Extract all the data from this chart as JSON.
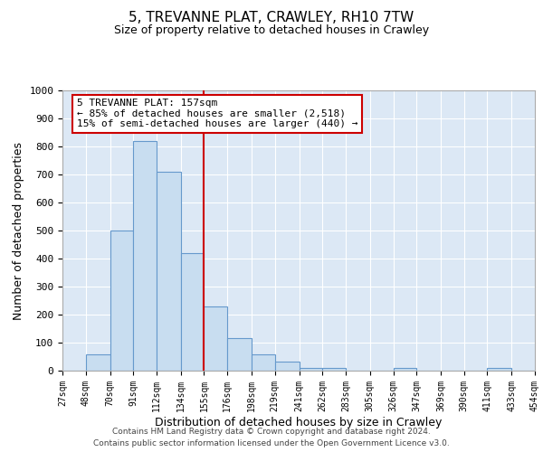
{
  "title": "5, TREVANNE PLAT, CRAWLEY, RH10 7TW",
  "subtitle": "Size of property relative to detached houses in Crawley",
  "xlabel": "Distribution of detached houses by size in Crawley",
  "ylabel": "Number of detached properties",
  "bar_color": "#c8ddf0",
  "bar_edge_color": "#6699cc",
  "background_color": "#dce8f5",
  "axes_background": "#dce8f5",
  "grid_color": "#ffffff",
  "vline_x": 155,
  "vline_color": "#cc0000",
  "bin_edges": [
    27,
    48,
    70,
    91,
    112,
    134,
    155,
    176,
    198,
    219,
    241,
    262,
    283,
    305,
    326,
    347,
    369,
    390,
    411,
    433,
    454
  ],
  "bin_heights": [
    0,
    57,
    500,
    820,
    710,
    420,
    230,
    115,
    57,
    33,
    10,
    10,
    0,
    0,
    10,
    0,
    0,
    0,
    10,
    0
  ],
  "annotation_title": "5 TREVANNE PLAT: 157sqm",
  "annotation_line1": "← 85% of detached houses are smaller (2,518)",
  "annotation_line2": "15% of semi-detached houses are larger (440) →",
  "annotation_box_color": "#ffffff",
  "annotation_box_edge_color": "#cc0000",
  "ylim": [
    0,
    1000
  ],
  "yticks": [
    0,
    100,
    200,
    300,
    400,
    500,
    600,
    700,
    800,
    900,
    1000
  ],
  "tick_labels": [
    "27sqm",
    "48sqm",
    "70sqm",
    "91sqm",
    "112sqm",
    "134sqm",
    "155sqm",
    "176sqm",
    "198sqm",
    "219sqm",
    "241sqm",
    "262sqm",
    "283sqm",
    "305sqm",
    "326sqm",
    "347sqm",
    "369sqm",
    "390sqm",
    "411sqm",
    "433sqm",
    "454sqm"
  ],
  "footer_line1": "Contains HM Land Registry data © Crown copyright and database right 2024.",
  "footer_line2": "Contains public sector information licensed under the Open Government Licence v3.0."
}
